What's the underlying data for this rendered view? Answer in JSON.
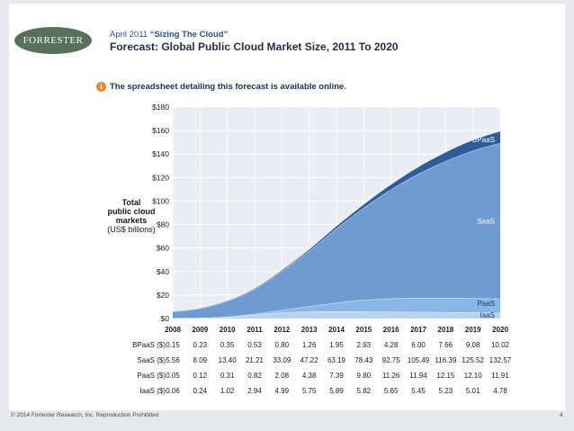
{
  "header": {
    "logo_text": "FORRESTER",
    "date": "April 2011",
    "report_title": "“Sizing The Cloud”",
    "title": "Forecast: Global Public Cloud Market Size, 2011 To 2020"
  },
  "note": {
    "icon": "info-icon",
    "text": "The spreadsheet detailing this forecast is available online."
  },
  "footer": {
    "copyright": "© 2014 Forrester Research, Inc. Reproduction Prohibited",
    "page": "4"
  },
  "colors": {
    "BPaaS": "#2f5c9a",
    "SaaS": "#6f9bd0",
    "PaaS": "#8ab6e6",
    "IaaS": "#b6d3f2"
  },
  "chart_data": {
    "type": "area",
    "title": "Forecast: Global Public Cloud Market Size, 2011 To 2020",
    "ylabel": [
      "Total",
      "public cloud",
      "markets"
    ],
    "ylabel_unit": "(US$ billions)",
    "ylim": [
      0,
      180
    ],
    "yticks": [
      "$0",
      "$20",
      "$40",
      "$60",
      "$80",
      "$100",
      "$120",
      "$140",
      "$160",
      "$180"
    ],
    "ytick_values": [
      0,
      20,
      40,
      60,
      80,
      100,
      120,
      140,
      160,
      180
    ],
    "categories": [
      "2008",
      "2009",
      "2010",
      "2011",
      "2012",
      "2013",
      "2014",
      "2015",
      "2016",
      "2017",
      "2018",
      "2019",
      "2020"
    ],
    "series": [
      {
        "name": "IaaS",
        "row_label": "IaaS ($)",
        "values": [
          0.06,
          0.24,
          1.02,
          2.94,
          4.99,
          5.75,
          5.89,
          5.82,
          5.65,
          5.45,
          5.23,
          5.01,
          4.78
        ]
      },
      {
        "name": "PaaS",
        "row_label": "PaaS ($)",
        "values": [
          0.05,
          0.12,
          0.31,
          0.82,
          2.08,
          4.38,
          7.39,
          9.8,
          11.26,
          11.94,
          12.15,
          12.1,
          11.91
        ]
      },
      {
        "name": "SaaS",
        "row_label": "SaaS ($)",
        "values": [
          5.56,
          8.09,
          13.4,
          21.21,
          33.09,
          47.22,
          63.19,
          78.43,
          92.75,
          105.49,
          116.39,
          125.52,
          132.57
        ]
      },
      {
        "name": "BPaaS",
        "row_label": "BPaaS ($)",
        "values": [
          0.15,
          0.23,
          0.35,
          0.53,
          0.8,
          1.26,
          1.95,
          2.93,
          4.28,
          6.0,
          7.66,
          9.08,
          10.02
        ]
      }
    ],
    "table_rows": [
      {
        "label": "BPaaS ($)",
        "values": [
          "0.15",
          "0.23",
          "0.35",
          "0.53",
          "0.80",
          "1.26",
          "1.95",
          "2.93",
          "4.28",
          "6.00",
          "7.66",
          "9.08",
          "10.02"
        ]
      },
      {
        "label": "SaaS ($)",
        "values": [
          "5.56",
          "8.09",
          "13.40",
          "21.21",
          "33.09",
          "47.22",
          "63.19",
          "78.43",
          "92.75",
          "105.49",
          "116.39",
          "125.52",
          "132.57"
        ]
      },
      {
        "label": "PaaS ($)",
        "values": [
          "0.05",
          "0.12",
          "0.31",
          "0.82",
          "2.08",
          "4.38",
          "7.39",
          "9.80",
          "11.26",
          "11.94",
          "12.15",
          "12.10",
          "11.91"
        ]
      },
      {
        "label": "IaaS ($)",
        "values": [
          "0.06",
          "0.24",
          "1.02",
          "2.94",
          "4.99",
          "5.75",
          "5.89",
          "5.82",
          "5.65",
          "5.45",
          "5.23",
          "5.01",
          "4.78"
        ]
      }
    ]
  }
}
